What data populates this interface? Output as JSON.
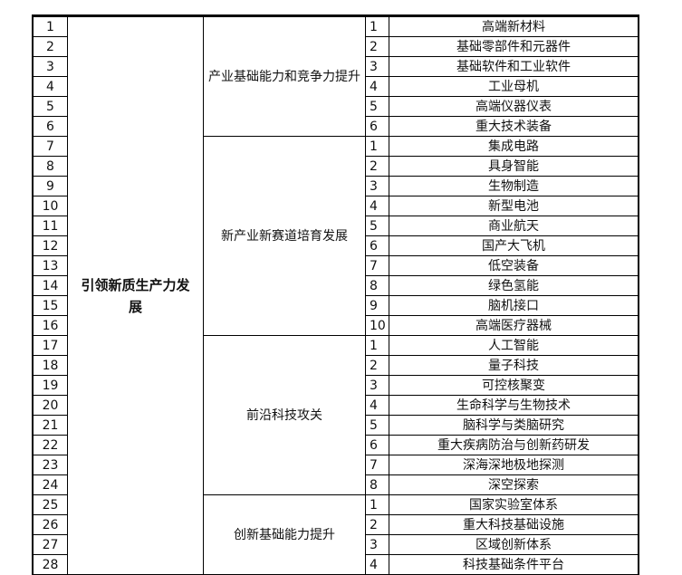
{
  "category": "引领新质生产力发展",
  "groups": [
    {
      "name": "产业基础能力和竞争力提升",
      "items": [
        "高端新材料",
        "基础零部件和元器件",
        "基础软件和工业软件",
        "工业母机",
        "高端仪器仪表",
        "重大技术装备"
      ]
    },
    {
      "name": "新产业新赛道培育发展",
      "items": [
        "集成电路",
        "具身智能",
        "生物制造",
        "新型电池",
        "商业航天",
        "国产大飞机",
        "低空装备",
        "绿色氢能",
        "脑机接口",
        "高端医疗器械"
      ]
    },
    {
      "name": "前沿科技攻关",
      "items": [
        "人工智能",
        "量子科技",
        "可控核聚变",
        "生命科学与生物技术",
        "脑科学与类脑研究",
        "重大疾病防治与创新药研发",
        "深海深地极地探测",
        "深空探索"
      ]
    },
    {
      "name": "创新基础能力提升",
      "items": [
        "国家实验室体系",
        "重大科技基础设施",
        "区域创新体系",
        "科技基础条件平台"
      ]
    }
  ]
}
